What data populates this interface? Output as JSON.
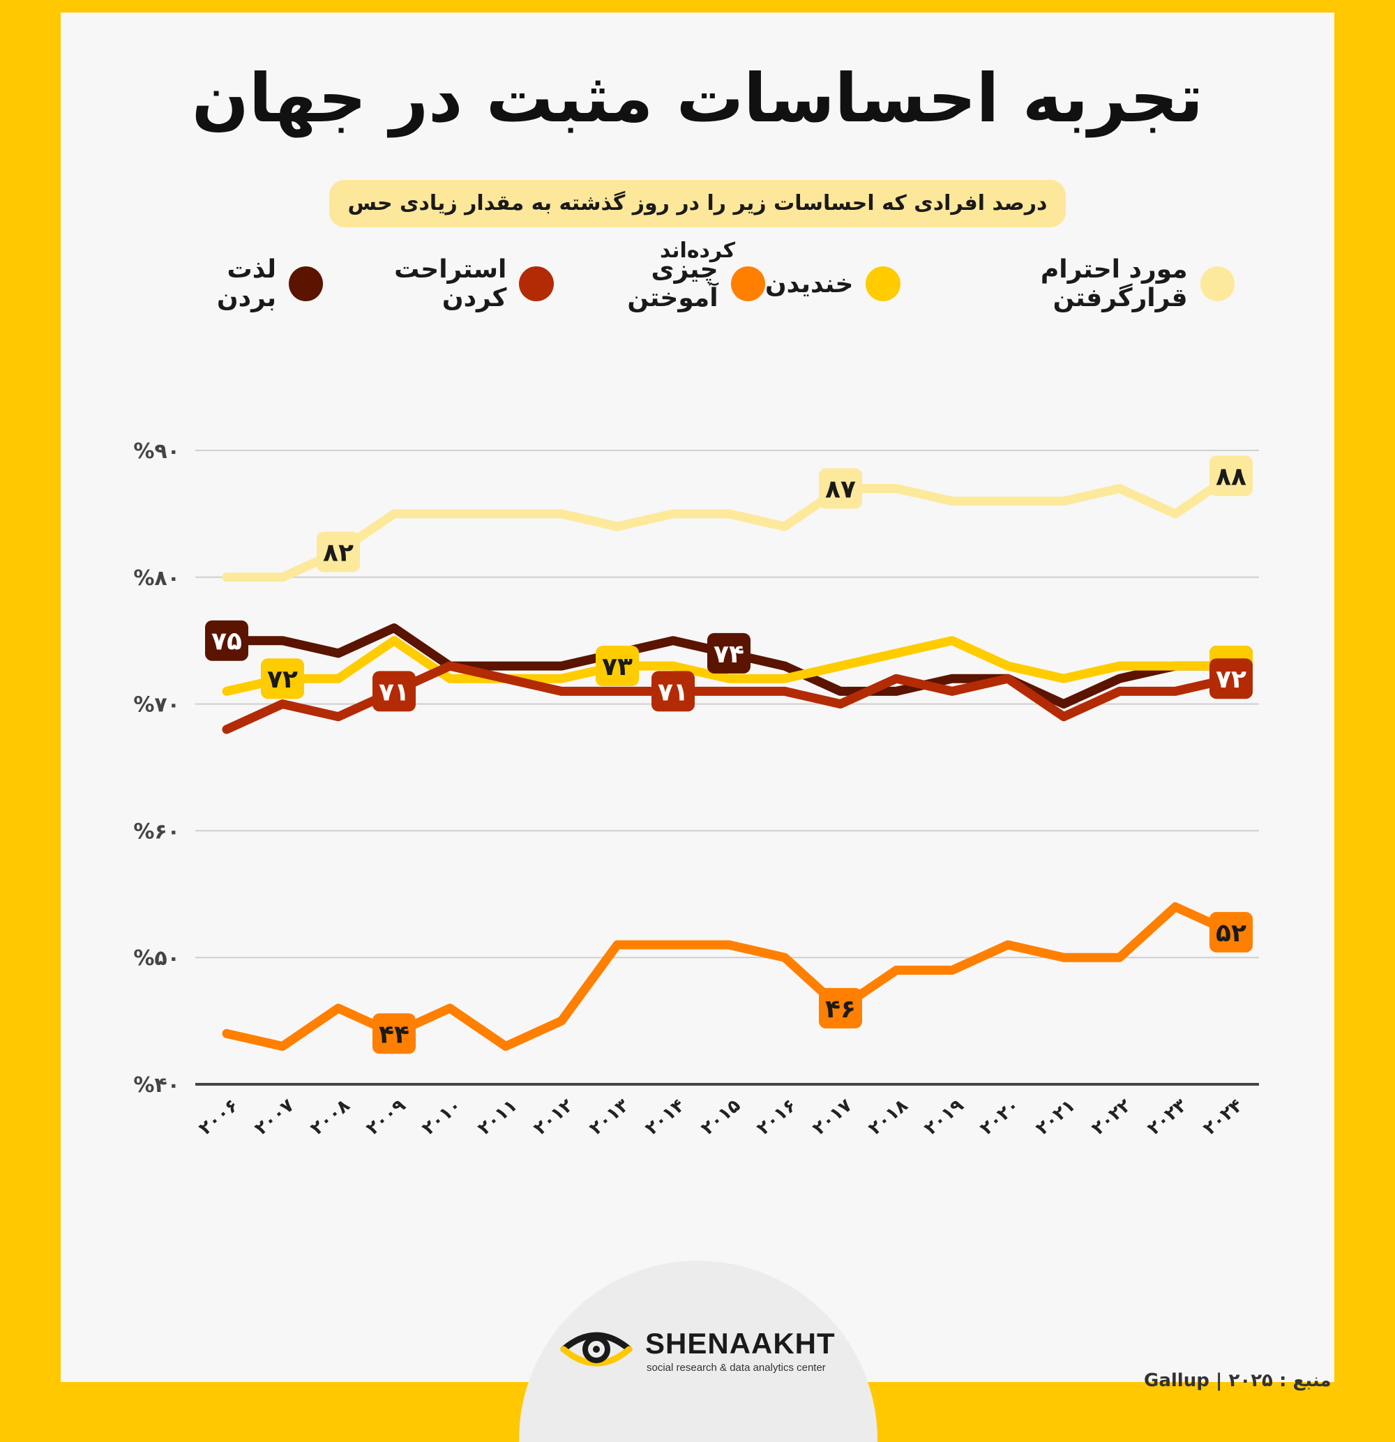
{
  "title": "تجربه احساسات مثبت در جهان",
  "subtitle": "درصد افرادی که احساسات زیر را در روز گذشته به مقدار زیادی حس کرده‌اند",
  "legend": [
    {
      "label": "مورد احترام قرارگرفتن",
      "color": "#fde99b"
    },
    {
      "label": "خندیدن",
      "color": "#ffcc00"
    },
    {
      "label": "چیزی آموختن",
      "color": "#ff7f00"
    },
    {
      "label": "استراحت کردن",
      "color": "#b32b05"
    },
    {
      "label": "لذت بردن",
      "color": "#5a1400"
    }
  ],
  "brand": {
    "name": "SHENAAKHT",
    "tagline": "social research & data analytics center"
  },
  "source": "منبع : ۲۰۲۵ | Gallup",
  "chart_data": {
    "type": "line",
    "x": [
      "۲۰۰۶",
      "۲۰۰۷",
      "۲۰۰۸",
      "۲۰۰۹",
      "۲۰۱۰",
      "۲۰۱۱",
      "۲۰۱۲",
      "۲۰۱۳",
      "۲۰۱۴",
      "۲۰۱۵",
      "۲۰۱۶",
      "۲۰۱۷",
      "۲۰۱۸",
      "۲۰۱۹",
      "۲۰۲۰",
      "۲۰۲۱",
      "۲۰۲۲",
      "۲۰۲۳",
      "۲۰۲۴"
    ],
    "y_ticks": [
      {
        "value": 40,
        "label": "%۴۰"
      },
      {
        "value": 50,
        "label": "%۵۰"
      },
      {
        "value": 60,
        "label": "%۶۰"
      },
      {
        "value": 70,
        "label": "%۷۰"
      },
      {
        "value": 80,
        "label": "%۸۰"
      },
      {
        "value": 90,
        "label": "%۹۰"
      }
    ],
    "ylim": [
      40,
      90
    ],
    "grid": true,
    "legend_position": "top",
    "series": [
      {
        "name": "مورد احترام قرارگرفتن",
        "color": "#fde99b",
        "label_text": "#1a1a1a",
        "values": [
          80,
          80,
          82,
          85,
          85,
          85,
          85,
          84,
          85,
          85,
          84,
          87,
          87,
          86,
          86,
          86,
          87,
          85,
          88
        ],
        "labels": [
          {
            "i": 2,
            "text": "۸۲"
          },
          {
            "i": 11,
            "text": "۸۷"
          },
          {
            "i": 18,
            "text": "۸۸"
          }
        ]
      },
      {
        "name": "لذت بردن",
        "color": "#5a1400",
        "label_text": "#ffffff",
        "values": [
          75,
          75,
          74,
          76,
          73,
          73,
          73,
          74,
          75,
          74,
          73,
          71,
          71,
          72,
          72,
          70,
          72,
          73,
          73
        ],
        "labels": [
          {
            "i": 0,
            "text": "۷۵"
          },
          {
            "i": 9,
            "text": "۷۴"
          },
          {
            "i": 18,
            "text": "۷۳"
          }
        ]
      },
      {
        "name": "خندیدن",
        "color": "#ffcc00",
        "label_text": "#1a1a1a",
        "values": [
          71,
          72,
          72,
          75,
          72,
          72,
          72,
          73,
          73,
          72,
          72,
          73,
          74,
          75,
          73,
          72,
          73,
          73,
          73
        ],
        "labels": [
          {
            "i": 1,
            "text": "۷۲"
          },
          {
            "i": 7,
            "text": "۷۳"
          },
          {
            "i": 18,
            "text": "۷۳"
          }
        ]
      },
      {
        "name": "استراحت کردن",
        "color": "#b32b05",
        "label_text": "#ffffff",
        "values": [
          68,
          70,
          69,
          71,
          73,
          72,
          71,
          71,
          71,
          71,
          71,
          70,
          72,
          71,
          72,
          69,
          71,
          71,
          72
        ],
        "labels": [
          {
            "i": 3,
            "text": "۷۱"
          },
          {
            "i": 8,
            "text": "۷۱"
          },
          {
            "i": 18,
            "text": "۷۲"
          }
        ]
      },
      {
        "name": "چیزی آموختن",
        "color": "#ff7f00",
        "label_text": "#1a1a1a",
        "values": [
          44,
          43,
          46,
          44,
          46,
          43,
          45,
          51,
          51,
          51,
          50,
          46,
          49,
          49,
          51,
          50,
          50,
          54,
          52
        ],
        "labels": [
          {
            "i": 3,
            "text": "۴۴"
          },
          {
            "i": 11,
            "text": "۴۶"
          },
          {
            "i": 18,
            "text": "۵۲"
          }
        ]
      }
    ]
  }
}
